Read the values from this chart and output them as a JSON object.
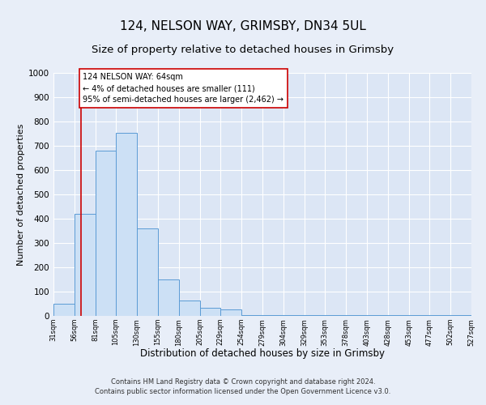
{
  "title1": "124, NELSON WAY, GRIMSBY, DN34 5UL",
  "title2": "Size of property relative to detached houses in Grimsby",
  "xlabel": "Distribution of detached houses by size in Grimsby",
  "ylabel": "Number of detached properties",
  "bar_left_edges": [
    31,
    56,
    81,
    105,
    130,
    155,
    180,
    205,
    229,
    254,
    279,
    304,
    329,
    353,
    378,
    403,
    428,
    453,
    477,
    502
  ],
  "bar_widths": [
    25,
    25,
    24,
    25,
    25,
    25,
    25,
    24,
    25,
    25,
    25,
    25,
    24,
    25,
    25,
    25,
    25,
    24,
    25,
    25
  ],
  "bar_heights": [
    50,
    420,
    680,
    755,
    360,
    150,
    65,
    35,
    28,
    2,
    2,
    2,
    2,
    2,
    2,
    2,
    2,
    2,
    2,
    2
  ],
  "bar_facecolor": "#cce0f5",
  "bar_edgecolor": "#5b9bd5",
  "background_color": "#dce6f5",
  "grid_color": "#ffffff",
  "fig_background": "#e8eef8",
  "vline_x": 64,
  "vline_color": "#cc0000",
  "annotation_text": "124 NELSON WAY: 64sqm\n← 4% of detached houses are smaller (111)\n95% of semi-detached houses are larger (2,462) →",
  "annotation_box_color": "#ffffff",
  "annotation_box_edgecolor": "#cc0000",
  "xlim": [
    31,
    527
  ],
  "ylim": [
    0,
    1000
  ],
  "yticks": [
    0,
    100,
    200,
    300,
    400,
    500,
    600,
    700,
    800,
    900,
    1000
  ],
  "xtick_labels": [
    "31sqm",
    "56sqm",
    "81sqm",
    "105sqm",
    "130sqm",
    "155sqm",
    "180sqm",
    "205sqm",
    "229sqm",
    "254sqm",
    "279sqm",
    "304sqm",
    "329sqm",
    "353sqm",
    "378sqm",
    "403sqm",
    "428sqm",
    "453sqm",
    "477sqm",
    "502sqm",
    "527sqm"
  ],
  "xtick_positions": [
    31,
    56,
    81,
    105,
    130,
    155,
    180,
    205,
    229,
    254,
    279,
    304,
    329,
    353,
    378,
    403,
    428,
    453,
    477,
    502,
    527
  ],
  "footer_line1": "Contains HM Land Registry data © Crown copyright and database right 2024.",
  "footer_line2": "Contains public sector information licensed under the Open Government Licence v3.0.",
  "title1_fontsize": 11,
  "title2_fontsize": 9.5,
  "xlabel_fontsize": 8.5,
  "ylabel_fontsize": 8,
  "annotation_fontsize": 7,
  "footer_fontsize": 6
}
